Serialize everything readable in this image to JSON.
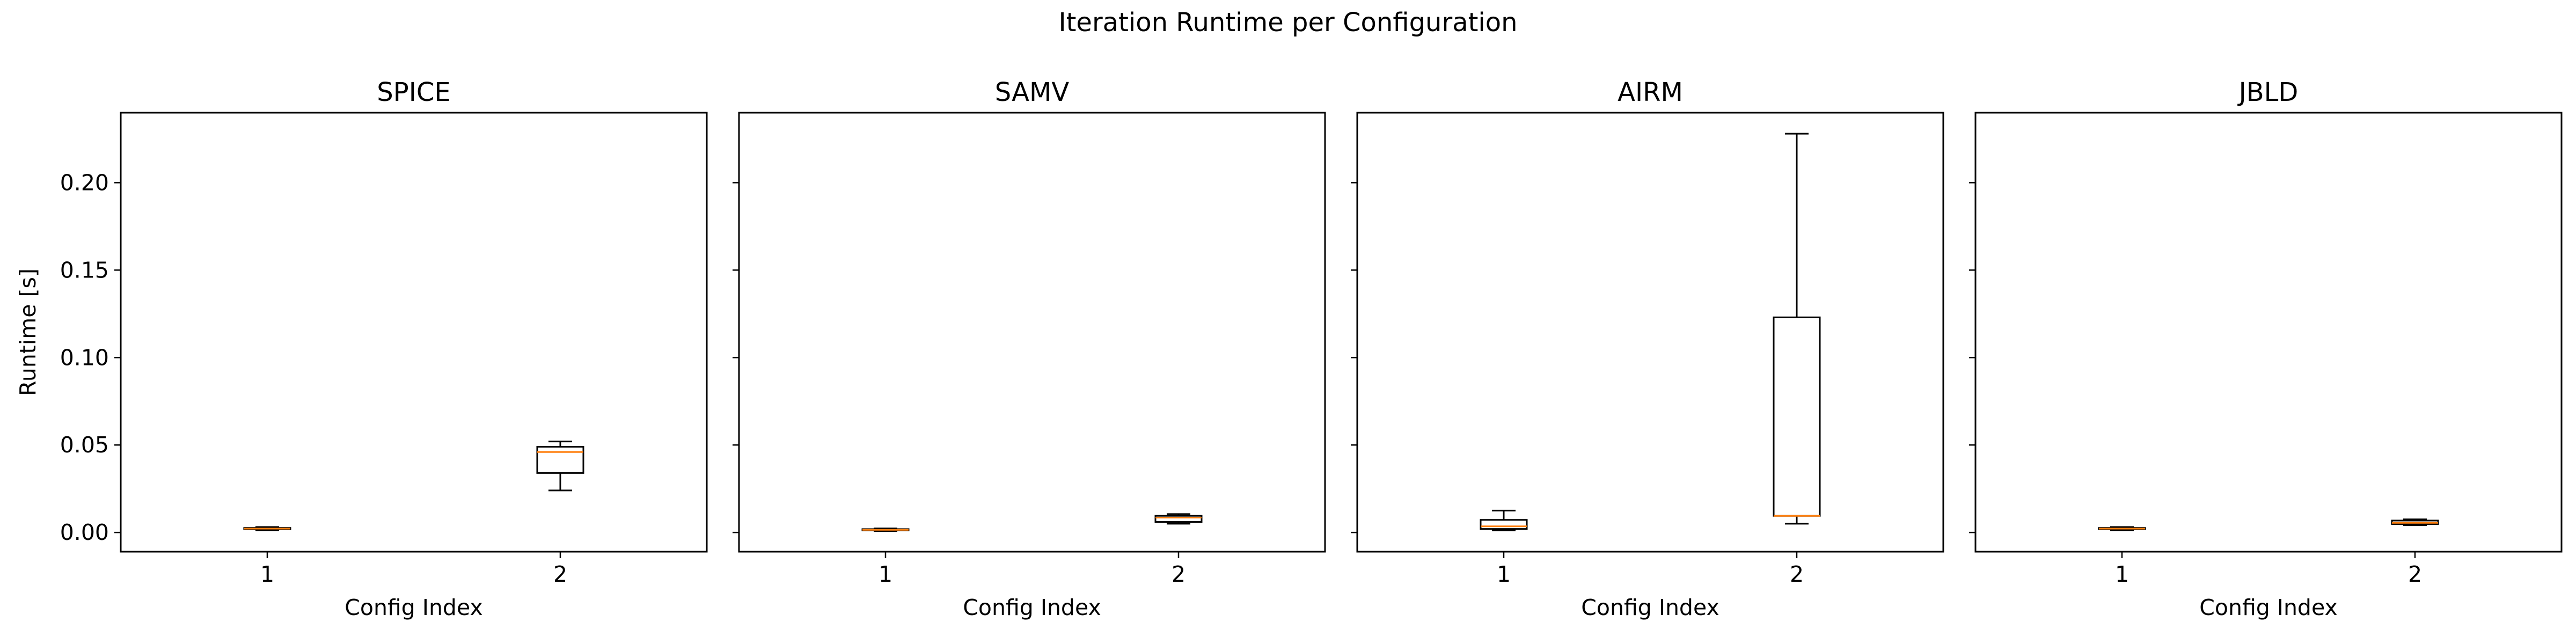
{
  "suptitle": "Iteration Runtime per Configuration",
  "chart_data": [
    {
      "type": "box",
      "title": "SPICE",
      "xlabel": "Config Index",
      "ylabel": "Runtime [s]",
      "categories": [
        "1",
        "2"
      ],
      "ylim": [
        -0.011,
        0.24
      ],
      "yticks": [
        "0.00",
        "0.05",
        "0.10",
        "0.15",
        "0.20"
      ],
      "boxes": [
        {
          "whisker_low": 0.0013,
          "q1": 0.0018,
          "median": 0.0022,
          "q3": 0.0026,
          "whisker_high": 0.0031
        },
        {
          "whisker_low": 0.024,
          "q1": 0.034,
          "median": 0.046,
          "q3": 0.049,
          "whisker_high": 0.052
        }
      ]
    },
    {
      "type": "box",
      "title": "SAMV",
      "xlabel": "Config Index",
      "ylabel": "",
      "categories": [
        "1",
        "2"
      ],
      "ylim": [
        -0.011,
        0.24
      ],
      "yticks": [
        "0.00",
        "0.05",
        "0.10",
        "0.15",
        "0.20"
      ],
      "boxes": [
        {
          "whisker_low": 0.0008,
          "q1": 0.0012,
          "median": 0.0015,
          "q3": 0.0019,
          "whisker_high": 0.0023
        },
        {
          "whisker_low": 0.005,
          "q1": 0.006,
          "median": 0.0085,
          "q3": 0.0095,
          "whisker_high": 0.0105
        }
      ]
    },
    {
      "type": "box",
      "title": "AIRM",
      "xlabel": "Config Index",
      "ylabel": "",
      "categories": [
        "1",
        "2"
      ],
      "ylim": [
        -0.011,
        0.24
      ],
      "yticks": [
        "0.00",
        "0.05",
        "0.10",
        "0.15",
        "0.20"
      ],
      "boxes": [
        {
          "whisker_low": 0.0012,
          "q1": 0.002,
          "median": 0.0035,
          "q3": 0.0072,
          "whisker_high": 0.0125
        },
        {
          "whisker_low": 0.005,
          "q1": 0.0095,
          "median": 0.0095,
          "q3": 0.123,
          "whisker_high": 0.228
        }
      ]
    },
    {
      "type": "box",
      "title": "JBLD",
      "xlabel": "Config Index",
      "ylabel": "",
      "categories": [
        "1",
        "2"
      ],
      "ylim": [
        -0.011,
        0.24
      ],
      "yticks": [
        "0.00",
        "0.05",
        "0.10",
        "0.15",
        "0.20"
      ],
      "boxes": [
        {
          "whisker_low": 0.0013,
          "q1": 0.0018,
          "median": 0.0022,
          "q3": 0.0026,
          "whisker_high": 0.0031
        },
        {
          "whisker_low": 0.0042,
          "q1": 0.0048,
          "median": 0.0055,
          "q3": 0.0068,
          "whisker_high": 0.0075
        }
      ]
    }
  ],
  "colors": {
    "box_edge": "#000000",
    "median": "#ff7f0e",
    "background": "#ffffff"
  }
}
